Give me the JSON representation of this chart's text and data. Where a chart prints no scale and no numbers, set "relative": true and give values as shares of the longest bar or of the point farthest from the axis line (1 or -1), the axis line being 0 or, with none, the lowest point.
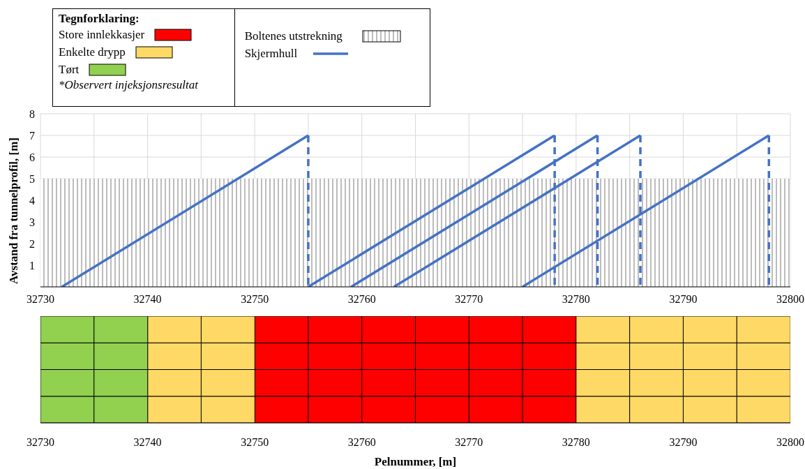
{
  "chart_data": [
    {
      "type": "line",
      "ylabel": "Avstand fra tunnelprofil, [m]",
      "legend_title": "Tegnforklaring:",
      "legend": "top left",
      "grid": true,
      "marker": "none",
      "xlim": [
        32730,
        32800
      ],
      "xticks": [
        32730,
        {
          "value": 32735,
          "label": null
        },
        32740,
        {
          "value": 32745,
          "label": null
        },
        32750,
        {
          "value": 32755,
          "label": null
        },
        32760,
        {
          "value": 32765,
          "label": null
        },
        32770,
        {
          "value": 32775,
          "label": null
        },
        32780,
        {
          "value": 32785,
          "label": null
        },
        32790,
        {
          "value": 32795,
          "label": null
        },
        32800
      ],
      "ylim": [
        0,
        8
      ],
      "yticks": [
        {
          "value": 0,
          "label": null
        },
        1,
        2,
        3,
        4,
        5,
        6,
        7,
        8
      ],
      "bands": [
        {
          "axis": "y",
          "from": 0,
          "to": 5,
          "label": "Boltenes utstrekning",
          "color": "#a6a6a6"
        }
      ],
      "series": [
        {
          "name": "Skjermhull",
          "color": "#4472c4",
          "line_style": "solid",
          "x": [
            32732,
            32755
          ],
          "values": [
            0,
            7
          ]
        },
        {
          "color": "#4472c4",
          "line_style": "solid",
          "x": [
            32755,
            32778
          ],
          "values": [
            0,
            7
          ]
        },
        {
          "color": "#4472c4",
          "line_style": "solid",
          "x": [
            32759,
            32782
          ],
          "values": [
            0,
            7
          ]
        },
        {
          "color": "#4472c4",
          "line_style": "solid",
          "x": [
            32763,
            32786
          ],
          "values": [
            0,
            7
          ]
        },
        {
          "color": "#4472c4",
          "line_style": "solid",
          "x": [
            32775,
            32798
          ],
          "values": [
            0,
            7
          ]
        },
        {
          "color": "#4472c4",
          "line_style": "dashed",
          "x": [
            32755,
            32755
          ],
          "values": [
            7,
            0
          ]
        },
        {
          "color": "#4472c4",
          "line_style": "dashed",
          "x": [
            32778,
            32778
          ],
          "values": [
            7,
            0
          ]
        },
        {
          "color": "#4472c4",
          "line_style": "dashed",
          "x": [
            32782,
            32782
          ],
          "values": [
            7,
            0
          ]
        },
        {
          "color": "#4472c4",
          "line_style": "dashed",
          "x": [
            32786,
            32786
          ],
          "values": [
            7,
            0
          ]
        },
        {
          "color": "#4472c4",
          "line_style": "dashed",
          "x": [
            32798,
            32798
          ],
          "values": [
            7,
            0
          ]
        }
      ]
    },
    {
      "type": "bar",
      "xlabel": "Pelnummer, [m]",
      "relative": true,
      "stacked": true,
      "legend": "top left",
      "xlim": [
        32730,
        32800
      ],
      "xticks": [
        32730,
        32740,
        32750,
        32760,
        32770,
        32780,
        32790,
        32800
      ],
      "annotations": [
        "*Observert injeksjonsresultat"
      ],
      "x": [
        32732.5,
        32737.5,
        32742.5,
        32747.5,
        32752.5,
        32757.5,
        32762.5,
        32767.5,
        32772.5,
        32777.5,
        32782.5,
        32787.5,
        32792.5,
        32797.5
      ],
      "series": [
        {
          "name": "Store innlekkasjer",
          "color": "#ff0000",
          "values": [
            null,
            null,
            null,
            null,
            0.25,
            0.25,
            0.25,
            0.25,
            0.25,
            0.25,
            null,
            null,
            null,
            null
          ]
        },
        {
          "name": "Enkelte drypp",
          "color": "#ffd966",
          "values": [
            null,
            null,
            0.25,
            0.25,
            null,
            null,
            null,
            null,
            null,
            null,
            0.25,
            0.25,
            0.25,
            0.25
          ]
        },
        {
          "name": "Tørt",
          "color": "#92d050",
          "values": [
            0.25,
            0.25,
            null,
            null,
            null,
            null,
            null,
            null,
            null,
            null,
            null,
            null,
            null,
            null
          ]
        },
        {
          "color": "#ff0000",
          "values": [
            null,
            null,
            null,
            null,
            0.25,
            0.25,
            0.25,
            0.25,
            0.25,
            0.25,
            null,
            null,
            null,
            null
          ]
        },
        {
          "color": "#ffd966",
          "values": [
            null,
            null,
            0.25,
            0.25,
            null,
            null,
            null,
            null,
            null,
            null,
            0.25,
            0.25,
            0.25,
            0.25
          ]
        },
        {
          "color": "#92d050",
          "values": [
            0.25,
            0.25,
            null,
            null,
            null,
            null,
            null,
            null,
            null,
            null,
            null,
            null,
            null,
            null
          ]
        },
        {
          "color": "#ff0000",
          "values": [
            null,
            null,
            null,
            null,
            0.25,
            0.25,
            0.25,
            0.25,
            0.25,
            0.25,
            null,
            null,
            null,
            null
          ]
        },
        {
          "color": "#ffd966",
          "values": [
            null,
            null,
            0.25,
            0.25,
            null,
            null,
            null,
            null,
            null,
            null,
            0.25,
            0.25,
            0.25,
            0.25
          ]
        },
        {
          "color": "#92d050",
          "values": [
            0.25,
            0.25,
            null,
            null,
            null,
            null,
            null,
            null,
            null,
            null,
            null,
            null,
            null,
            null
          ]
        },
        {
          "color": "#ff0000",
          "values": [
            null,
            null,
            null,
            null,
            0.25,
            0.25,
            0.25,
            0.25,
            0.25,
            0.25,
            null,
            null,
            null,
            null
          ]
        },
        {
          "color": "#ffd966",
          "values": [
            null,
            null,
            0.25,
            0.25,
            null,
            null,
            null,
            null,
            null,
            null,
            0.25,
            0.25,
            0.25,
            0.25
          ]
        },
        {
          "color": "#92d050",
          "values": [
            0.25,
            0.25,
            null,
            null,
            null,
            null,
            null,
            null,
            null,
            null,
            null,
            null,
            null,
            null
          ]
        }
      ]
    }
  ]
}
